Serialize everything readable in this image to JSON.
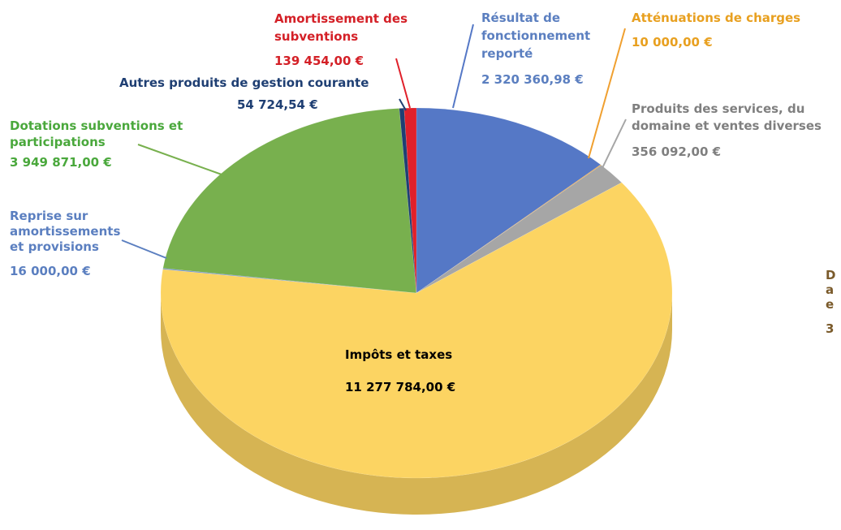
{
  "chart_data": {
    "type": "pie",
    "categories": [
      [
        "Résultat de",
        "fonctionnement",
        "reporté"
      ],
      [
        "Atténuations de charges"
      ],
      [
        "Produits des services, du",
        "domaine et ventes diverses"
      ],
      [
        "Impôts et taxes"
      ],
      [
        "Reprise sur",
        "amortissements",
        "et provisions"
      ],
      [
        "Dotations subventions et",
        "participations"
      ],
      [
        "Autres produits de gestion courante"
      ],
      [
        "Amortissement des",
        "subventions"
      ]
    ],
    "values": [
      2320360.98,
      10000,
      356092,
      11277784,
      16000,
      3949871,
      54724.54,
      139454
    ],
    "value_labels": [
      "2 320 360,98 €",
      "10 000,00 €",
      "356 092,00 €",
      "11 277 784,00 €",
      "16 000,00 €",
      "3 949 871,00 €",
      "54 724,54 €",
      "139 454,00 €"
    ],
    "colors": [
      "#5578c6",
      "#f0a030",
      "#a6a6a6",
      "#fcd462",
      "#6f8fd0",
      "#78b04e",
      "#1f3f73",
      "#e0202a"
    ],
    "label_colors": [
      "#5b7fc0",
      "#e8a020",
      "#7f7f7f",
      "#000000",
      "#5b7fc0",
      "#4aa83c",
      "#1f3f73",
      "#d42027"
    ],
    "clipped_label": [
      "D",
      "a",
      "e",
      "3"
    ]
  }
}
